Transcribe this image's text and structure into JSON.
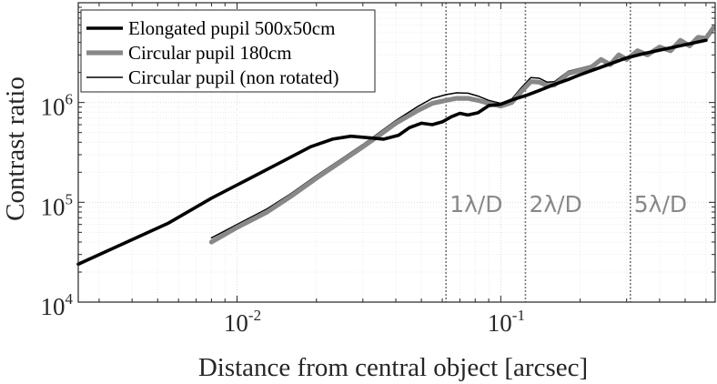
{
  "chart_data": {
    "type": "line",
    "title": "",
    "xlabel": "Distance from central object [arcsec]",
    "ylabel": "Contrast ratio",
    "xscale": "log",
    "yscale": "log",
    "xlim": [
      0.0025,
      0.65
    ],
    "ylim": [
      10000,
      10000000
    ],
    "grid": true,
    "legend_position": "top-left",
    "x_ticks": [
      {
        "value": 0.01,
        "base": "10",
        "exp": "-2"
      },
      {
        "value": 0.1,
        "base": "10",
        "exp": "-1"
      }
    ],
    "y_ticks": [
      {
        "value": 10000,
        "base": "10",
        "exp": "4"
      },
      {
        "value": 100000,
        "base": "10",
        "exp": "5"
      },
      {
        "value": 1000000,
        "base": "10",
        "exp": "6"
      }
    ],
    "vlines": [
      {
        "x": 0.062,
        "label": "1λ/D"
      },
      {
        "x": 0.124,
        "label": "2λ/D"
      },
      {
        "x": 0.31,
        "label": "5λ/D"
      }
    ],
    "series": [
      {
        "name": "Elongated pupil 500x50cm",
        "color": "#000000",
        "points": [
          [
            0.0025,
            24000
          ],
          [
            0.0035,
            36000
          ],
          [
            0.0055,
            62000
          ],
          [
            0.008,
            110000
          ],
          [
            0.011,
            170000
          ],
          [
            0.015,
            260000
          ],
          [
            0.019,
            360000
          ],
          [
            0.023,
            430000
          ],
          [
            0.027,
            460000
          ],
          [
            0.031,
            445000
          ],
          [
            0.036,
            430000
          ],
          [
            0.041,
            470000
          ],
          [
            0.045,
            560000
          ],
          [
            0.05,
            620000
          ],
          [
            0.055,
            600000
          ],
          [
            0.06,
            640000
          ],
          [
            0.065,
            720000
          ],
          [
            0.07,
            780000
          ],
          [
            0.075,
            750000
          ],
          [
            0.082,
            790000
          ],
          [
            0.09,
            930000
          ],
          [
            0.1,
            960000
          ],
          [
            0.11,
            1060000
          ],
          [
            0.125,
            1180000
          ],
          [
            0.14,
            1320000
          ],
          [
            0.16,
            1520000
          ],
          [
            0.18,
            1700000
          ],
          [
            0.2,
            1900000
          ],
          [
            0.25,
            2350000
          ],
          [
            0.3,
            2800000
          ],
          [
            0.35,
            3100000
          ],
          [
            0.4,
            3350000
          ],
          [
            0.5,
            3800000
          ],
          [
            0.6,
            4200000
          ]
        ]
      },
      {
        "name": "Circular pupil 180cm",
        "color": "#888888",
        "points": [
          [
            0.008,
            40000
          ],
          [
            0.01,
            56000
          ],
          [
            0.013,
            80000
          ],
          [
            0.016,
            115000
          ],
          [
            0.02,
            175000
          ],
          [
            0.025,
            260000
          ],
          [
            0.03,
            360000
          ],
          [
            0.035,
            480000
          ],
          [
            0.04,
            620000
          ],
          [
            0.048,
            820000
          ],
          [
            0.055,
            980000
          ],
          [
            0.062,
            1050000
          ],
          [
            0.068,
            1100000
          ],
          [
            0.075,
            1100000
          ],
          [
            0.082,
            1050000
          ],
          [
            0.09,
            980000
          ],
          [
            0.1,
            920000
          ],
          [
            0.11,
            1000000
          ],
          [
            0.12,
            1300000
          ],
          [
            0.13,
            1620000
          ],
          [
            0.14,
            1600000
          ],
          [
            0.15,
            1480000
          ],
          [
            0.16,
            1500000
          ],
          [
            0.18,
            1950000
          ],
          [
            0.2,
            2100000
          ],
          [
            0.22,
            2250000
          ],
          [
            0.24,
            2700000
          ],
          [
            0.26,
            2400000
          ],
          [
            0.28,
            3000000
          ],
          [
            0.3,
            2700000
          ],
          [
            0.33,
            3300000
          ],
          [
            0.36,
            3000000
          ],
          [
            0.4,
            3600000
          ],
          [
            0.44,
            3300000
          ],
          [
            0.48,
            4200000
          ],
          [
            0.52,
            3700000
          ],
          [
            0.56,
            4500000
          ],
          [
            0.6,
            4400000
          ],
          [
            0.64,
            5600000
          ]
        ]
      },
      {
        "name": "Circular pupil (non rotated)",
        "color": "#000000",
        "points": [
          [
            0.008,
            44000
          ],
          [
            0.01,
            60000
          ],
          [
            0.013,
            86000
          ],
          [
            0.016,
            122000
          ],
          [
            0.02,
            185000
          ],
          [
            0.025,
            275000
          ],
          [
            0.03,
            380000
          ],
          [
            0.035,
            510000
          ],
          [
            0.04,
            660000
          ],
          [
            0.048,
            900000
          ],
          [
            0.055,
            1100000
          ],
          [
            0.062,
            1200000
          ],
          [
            0.068,
            1250000
          ],
          [
            0.075,
            1240000
          ],
          [
            0.082,
            1160000
          ],
          [
            0.09,
            1050000
          ],
          [
            0.1,
            980000
          ],
          [
            0.11,
            1080000
          ],
          [
            0.12,
            1420000
          ],
          [
            0.13,
            1780000
          ],
          [
            0.14,
            1750000
          ],
          [
            0.15,
            1600000
          ],
          [
            0.16,
            1620000
          ],
          [
            0.18,
            2050000
          ],
          [
            0.2,
            2200000
          ],
          [
            0.22,
            2350000
          ],
          [
            0.24,
            2800000
          ],
          [
            0.26,
            2500000
          ],
          [
            0.28,
            3100000
          ],
          [
            0.3,
            2800000
          ],
          [
            0.33,
            3400000
          ],
          [
            0.36,
            3100000
          ],
          [
            0.4,
            3700000
          ],
          [
            0.44,
            3400000
          ],
          [
            0.48,
            4300000
          ],
          [
            0.52,
            3800000
          ],
          [
            0.56,
            4600000
          ],
          [
            0.6,
            4500000
          ],
          [
            0.64,
            5500000
          ]
        ]
      }
    ]
  }
}
